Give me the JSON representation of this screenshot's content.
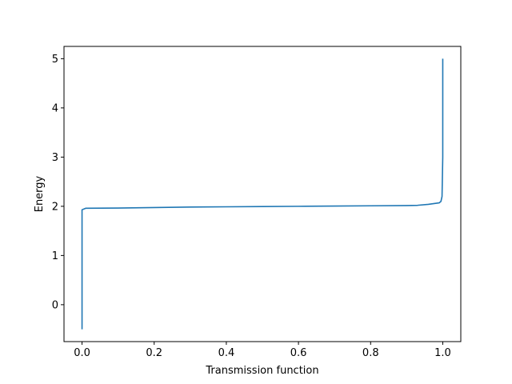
{
  "chart_data": {
    "type": "line",
    "title": "",
    "xlabel": "Transmission function",
    "ylabel": "Energy",
    "xlim": [
      -0.05,
      1.05
    ],
    "ylim": [
      -0.75,
      5.25
    ],
    "x_ticks": [
      0.0,
      0.2,
      0.4,
      0.6,
      0.8,
      1.0
    ],
    "y_ticks": [
      0,
      1,
      2,
      3,
      4,
      5
    ],
    "x_tick_labels": [
      "0.0",
      "0.2",
      "0.4",
      "0.6",
      "0.8",
      "1.0"
    ],
    "y_tick_labels": [
      "0",
      "1",
      "2",
      "3",
      "4",
      "5"
    ],
    "grid": false,
    "series": [
      {
        "color": "#1f77b4",
        "x": [
          0.0,
          0.0,
          0.0,
          0.0,
          0.0,
          0.01,
          0.1,
          0.2,
          0.3,
          0.4,
          0.5,
          0.6,
          0.7,
          0.8,
          0.9,
          0.93,
          0.96,
          0.99,
          0.995,
          0.998,
          1.0,
          1.0,
          1.0
        ],
        "y": [
          -0.5,
          0.0,
          1.0,
          1.5,
          1.93,
          1.96,
          1.965,
          1.975,
          1.985,
          1.99,
          1.995,
          2.0,
          2.005,
          2.01,
          2.015,
          2.02,
          2.04,
          2.07,
          2.1,
          2.2,
          3.0,
          4.0,
          5.0
        ]
      }
    ]
  }
}
